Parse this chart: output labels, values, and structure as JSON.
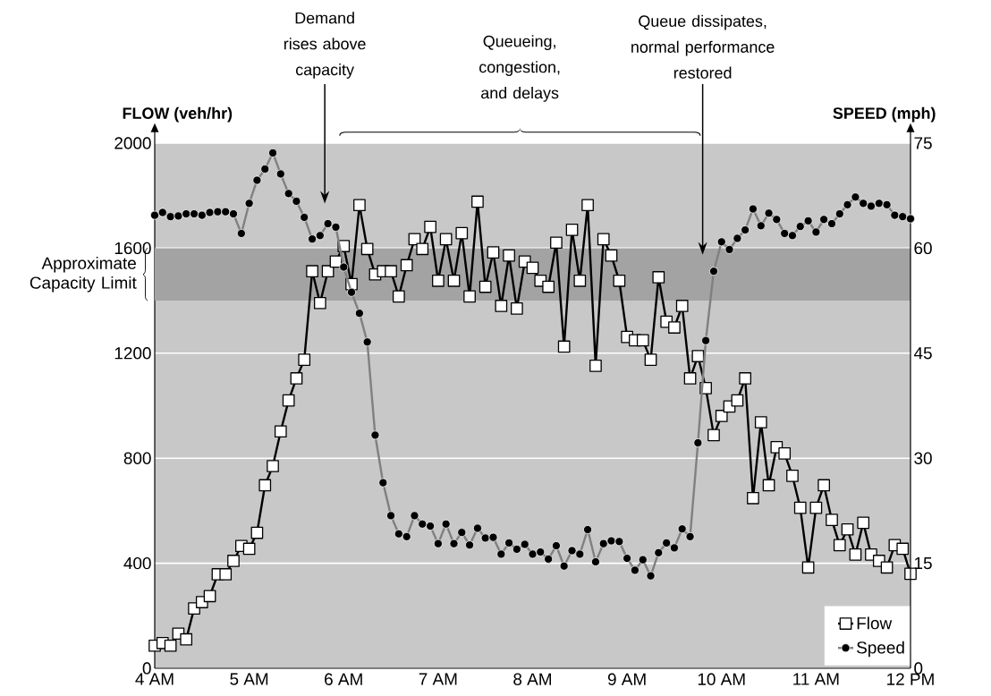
{
  "chart_data": {
    "type": "line",
    "x": [
      4,
      4.083,
      4.167,
      4.25,
      4.333,
      4.417,
      4.5,
      4.583,
      4.667,
      4.75,
      4.833,
      4.917,
      5,
      5.083,
      5.167,
      5.25,
      5.333,
      5.417,
      5.5,
      5.583,
      5.667,
      5.75,
      5.833,
      5.917,
      6,
      6.083,
      6.167,
      6.25,
      6.333,
      6.417,
      6.5,
      6.583,
      6.667,
      6.75,
      6.833,
      6.917,
      7,
      7.083,
      7.167,
      7.25,
      7.333,
      7.417,
      7.5,
      7.583,
      7.667,
      7.75,
      7.833,
      7.917,
      8,
      8.083,
      8.167,
      8.25,
      8.333,
      8.417,
      8.5,
      8.583,
      8.667,
      8.75,
      8.833,
      8.917,
      9,
      9.083,
      9.167,
      9.25,
      9.333,
      9.417,
      9.5,
      9.583,
      9.667,
      9.75,
      9.833,
      9.917,
      10,
      10.083,
      10.167,
      10.25,
      10.333,
      10.417,
      10.5,
      10.583,
      10.667,
      10.75,
      10.833,
      10.917,
      11,
      11.083,
      11.167,
      11.25,
      11.333,
      11.417,
      11.5,
      11.583,
      11.667,
      11.75,
      11.833,
      11.917,
      12
    ],
    "series": [
      {
        "name": "Flow",
        "color": "#000000",
        "marker": "square",
        "values": [
          86,
          96,
          86,
          132,
          110,
          228,
          252,
          275,
          358,
          358,
          409,
          466,
          455,
          516,
          697,
          770,
          902,
          1020,
          1104,
          1175,
          1512,
          1391,
          1512,
          1549,
          1608,
          1463,
          1764,
          1597,
          1500,
          1512,
          1512,
          1416,
          1535,
          1634,
          1597,
          1681,
          1476,
          1634,
          1476,
          1657,
          1416,
          1777,
          1453,
          1584,
          1380,
          1572,
          1370,
          1549,
          1525,
          1476,
          1453,
          1621,
          1225,
          1670,
          1476,
          1764,
          1152,
          1634,
          1572,
          1476,
          1262,
          1249,
          1249,
          1175,
          1489,
          1320,
          1298,
          1380,
          1104,
          1189,
          1067,
          888,
          961,
          997,
          1020,
          1104,
          648,
          937,
          697,
          842,
          818,
          733,
          611,
          384,
          611,
          697,
          565,
          469,
          529,
          433,
          554,
          433,
          409,
          384,
          469,
          455,
          360
        ]
      },
      {
        "name": "Speed",
        "color": "#808080",
        "marker": "circle",
        "axis": "y2",
        "values": [
          64.7,
          65.1,
          64.5,
          64.6,
          64.9,
          64.9,
          64.7,
          65.1,
          65.2,
          65.2,
          64.9,
          62.1,
          66.4,
          69.7,
          71.3,
          73.6,
          70.6,
          67.8,
          66.7,
          64.4,
          61.3,
          61.8,
          63.5,
          63.0,
          57.3,
          53.7,
          50.7,
          46.6,
          33.3,
          26.5,
          21.8,
          19.2,
          18.8,
          21.8,
          20.6,
          20.3,
          17.8,
          20.6,
          17.8,
          19.4,
          17.6,
          20.0,
          18.6,
          18.7,
          16.3,
          17.9,
          17.0,
          17.7,
          16.3,
          16.6,
          15.6,
          17.5,
          14.6,
          16.8,
          16.3,
          19.8,
          15.2,
          17.8,
          18.2,
          18.1,
          15.7,
          14.0,
          15.5,
          13.2,
          16.5,
          17.9,
          17.2,
          19.9,
          18.8,
          32.2,
          46.8,
          56.7,
          60.9,
          59.8,
          61.4,
          62.6,
          65.6,
          63.2,
          65.0,
          64.1,
          62.1,
          61.8,
          63.1,
          63.9,
          62.3,
          64.1,
          63.5,
          64.9,
          66.2,
          67.3,
          66.4,
          66.0,
          66.4,
          66.2,
          64.7,
          64.5,
          64.2
        ]
      }
    ],
    "ylabel": "FLOW (veh/hr)",
    "y2label": "SPEED (mph)",
    "xlim": [
      4,
      12
    ],
    "xticks": [
      {
        "value": 4,
        "label": "4 AM"
      },
      {
        "value": 5,
        "label": "5 AM"
      },
      {
        "value": 6,
        "label": "6 AM"
      },
      {
        "value": 7,
        "label": "7 AM"
      },
      {
        "value": 8,
        "label": "8 AM"
      },
      {
        "value": 9,
        "label": "9 AM"
      },
      {
        "value": 10,
        "label": "10 AM"
      },
      {
        "value": 11,
        "label": "11 AM"
      },
      {
        "value": 12,
        "label": "12 PM"
      }
    ],
    "ylim": [
      0,
      2000
    ],
    "yticks": [
      0,
      400,
      800,
      1200,
      1600,
      2000
    ],
    "y2lim": [
      0,
      75
    ],
    "y2ticks": [
      0,
      15,
      30,
      45,
      60,
      75
    ],
    "bands": [
      {
        "axis": "y",
        "from": 1400,
        "to": 1600,
        "label": "Approximate Capacity Limit",
        "color": "#a3a3a3"
      }
    ],
    "annotations": [
      "Demand rises above capacity",
      "Queueing, congestion, and delays",
      "Queue dissipates, normal performance restored"
    ],
    "grid": "y",
    "legend": "bottom right",
    "line_style": "solid"
  }
}
